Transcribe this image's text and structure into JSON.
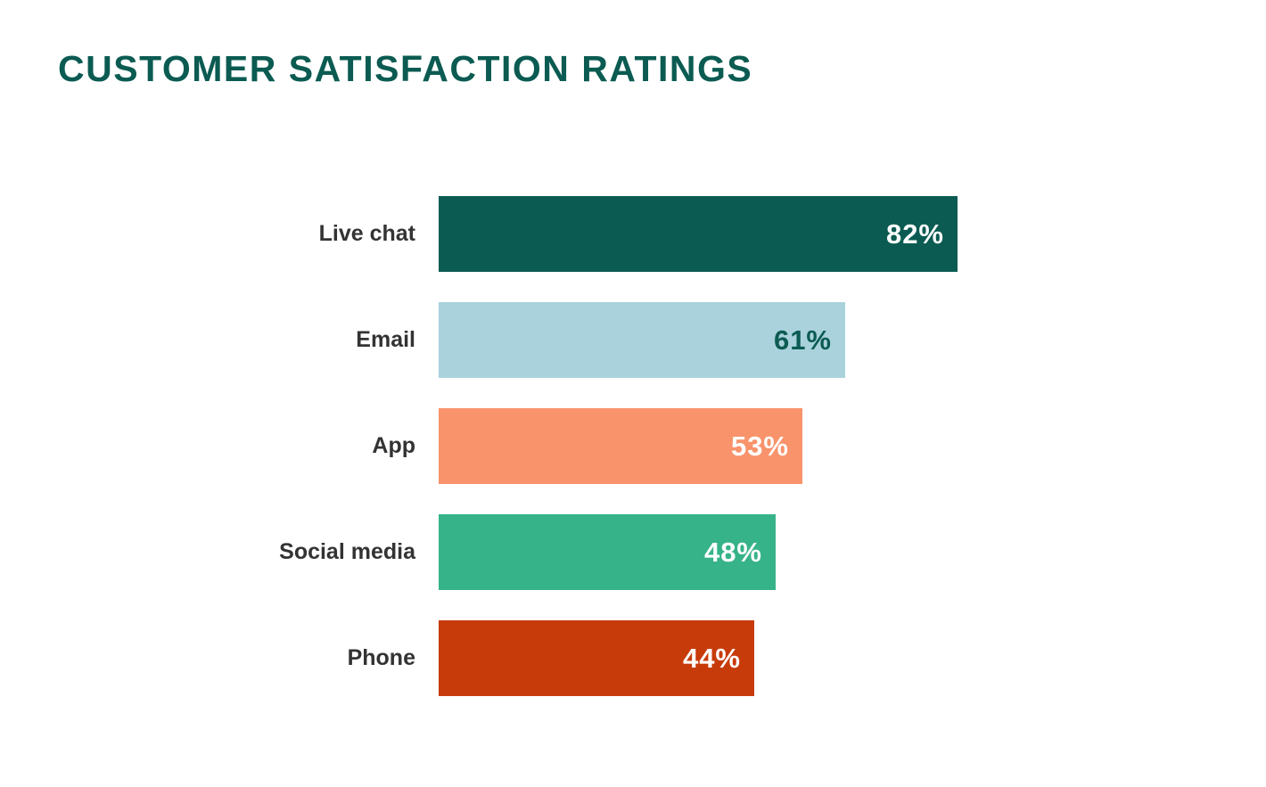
{
  "page": {
    "background_color": "#FFFFFF",
    "title_color": "#0B5B52"
  },
  "chart_data": {
    "type": "bar",
    "orientation": "horizontal",
    "title": "CUSTOMER SATISFACTION RATINGS",
    "categories": [
      "Live chat",
      "Email",
      "App",
      "Social media",
      "Phone"
    ],
    "values": [
      82,
      61,
      53,
      48,
      44
    ],
    "value_labels": [
      "82%",
      "61%",
      "53%",
      "48%",
      "44%"
    ],
    "bar_colors": [
      "#0B5B52",
      "#A9D2DC",
      "#F8936B",
      "#36B388",
      "#C73B0B"
    ],
    "value_label_colors": [
      "#FFFFFF",
      "#0B5B52",
      "#FFFFFF",
      "#FFFFFF",
      "#FFFFFF"
    ],
    "category_label_color": "#333333",
    "xlim": [
      0,
      100
    ],
    "grid": false,
    "legend": false,
    "xlabel": "",
    "ylabel": ""
  }
}
